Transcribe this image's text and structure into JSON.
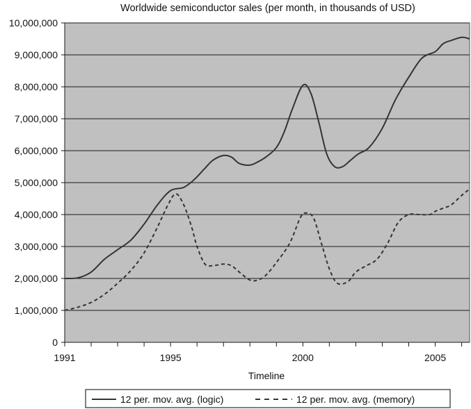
{
  "chart_data": {
    "type": "line",
    "title": "Worldwide semiconductor sales (per month, in thousands of USD)",
    "xlabel": "Timeline",
    "ylabel": "",
    "xlim": [
      1991,
      2006.3
    ],
    "ylim": [
      0,
      10000000
    ],
    "y_ticks": [
      0,
      1000000,
      2000000,
      3000000,
      4000000,
      5000000,
      6000000,
      7000000,
      8000000,
      9000000,
      10000000
    ],
    "y_tick_labels": [
      "0",
      "1,000,000",
      "2,000,000",
      "3,000,000",
      "4,000,000",
      "5,000,000",
      "6,000,000",
      "7,000,000",
      "8,000,000",
      "9,000,000",
      "10,000,000"
    ],
    "x_tick_labels": [
      {
        "year": 1991,
        "label": "1991"
      },
      {
        "year": 1995,
        "label": "1995"
      },
      {
        "year": 2000,
        "label": "2000"
      },
      {
        "year": 2005,
        "label": "2005"
      }
    ],
    "plot_background": "#c0c0c0",
    "grid": true,
    "legend_position": "bottom",
    "series": [
      {
        "name": "12 per. mov. avg. (logic)",
        "style": "solid",
        "color": "#333333",
        "x": [
          1991.0,
          1991.5,
          1992.0,
          1992.5,
          1993.0,
          1993.5,
          1994.0,
          1994.5,
          1995.0,
          1995.5,
          1995.9,
          1996.3,
          1996.6,
          1997.0,
          1997.3,
          1997.6,
          1998.0,
          1998.3,
          1998.6,
          1999.0,
          1999.3,
          1999.6,
          2000.0,
          2000.3,
          2000.6,
          2000.9,
          2001.2,
          2001.5,
          2001.8,
          2002.1,
          2002.5,
          2003.0,
          2003.5,
          2004.0,
          2004.5,
          2005.0,
          2005.3,
          2005.6,
          2006.0,
          2006.3
        ],
        "values": [
          2000000,
          2020000,
          2200000,
          2600000,
          2900000,
          3200000,
          3700000,
          4300000,
          4750000,
          4850000,
          5100000,
          5450000,
          5700000,
          5850000,
          5800000,
          5600000,
          5550000,
          5650000,
          5800000,
          6100000,
          6600000,
          7300000,
          8050000,
          7800000,
          6900000,
          5900000,
          5500000,
          5500000,
          5700000,
          5900000,
          6100000,
          6700000,
          7600000,
          8300000,
          8900000,
          9100000,
          9350000,
          9450000,
          9550000,
          9500000
        ]
      },
      {
        "name": "12 per. mov. avg. (memory)",
        "style": "dashed",
        "color": "#333333",
        "x": [
          1991.0,
          1991.5,
          1992.0,
          1992.5,
          1993.0,
          1993.5,
          1994.0,
          1994.5,
          1994.9,
          1995.2,
          1995.5,
          1995.8,
          1996.0,
          1996.3,
          1996.6,
          1997.0,
          1997.3,
          1997.6,
          1998.0,
          1998.3,
          1998.6,
          1999.0,
          1999.5,
          1999.9,
          2000.1,
          2000.4,
          2000.7,
          2001.0,
          2001.3,
          2001.7,
          2002.0,
          2002.4,
          2002.8,
          2003.2,
          2003.6,
          2004.0,
          2004.4,
          2004.8,
          2005.0,
          2005.3,
          2005.6,
          2006.0,
          2006.3
        ],
        "values": [
          1000000,
          1100000,
          1250000,
          1500000,
          1850000,
          2250000,
          2800000,
          3600000,
          4300000,
          4650000,
          4300000,
          3600000,
          3000000,
          2450000,
          2400000,
          2450000,
          2400000,
          2200000,
          1950000,
          1950000,
          2100000,
          2500000,
          3100000,
          3900000,
          4050000,
          3900000,
          3100000,
          2300000,
          1850000,
          1900000,
          2200000,
          2400000,
          2600000,
          3100000,
          3750000,
          4000000,
          4000000,
          4000000,
          4100000,
          4200000,
          4300000,
          4600000,
          4800000
        ]
      }
    ]
  }
}
